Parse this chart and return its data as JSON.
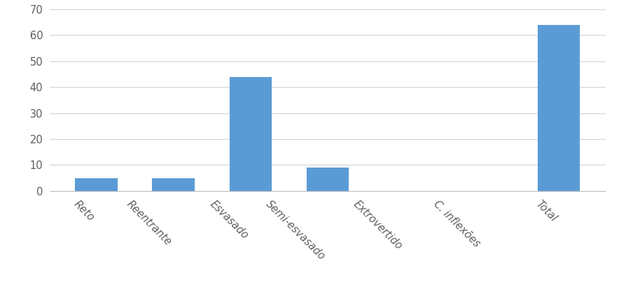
{
  "categories": [
    "Reto",
    "Reentrante",
    "Esvasado",
    "Semi-esvasado",
    "Extrovertido",
    "C. inflexões",
    "Total"
  ],
  "values": [
    5,
    5,
    44,
    9,
    0,
    0,
    64
  ],
  "bar_color": "#5B9BD5",
  "ylim": [
    0,
    70
  ],
  "yticks": [
    0,
    10,
    20,
    30,
    40,
    50,
    60,
    70
  ],
  "background_color": "#ffffff",
  "grid_color": "#d3d3d3",
  "bar_width": 0.55,
  "xlabel_rotation": -45,
  "xlabel_ha": "right",
  "xlabel_fontsize": 10.5,
  "ylabel_fontsize": 10.5,
  "tick_color": "#606060"
}
